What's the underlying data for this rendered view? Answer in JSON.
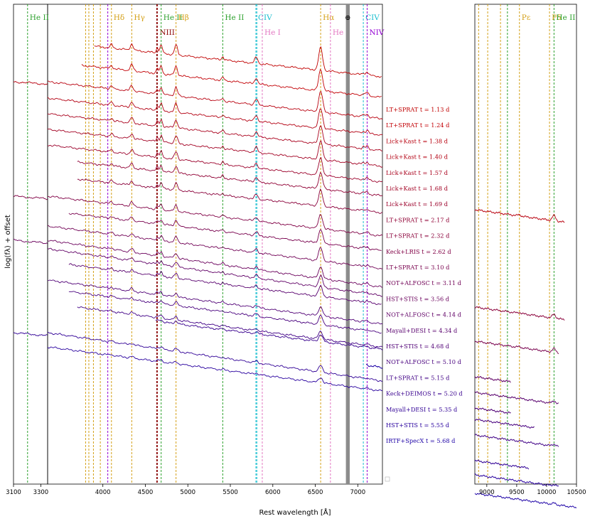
{
  "chart_data": {
    "type": "line",
    "xlabel": "Rest wavelength [Å]",
    "ylabel": "log(fλ) + offset",
    "xlim": [
      3100,
      10500
    ],
    "panels": [
      {
        "name": "left",
        "xlim": [
          3100,
          3350
        ]
      },
      {
        "name": "middle",
        "xlim": [
          3350,
          7290
        ]
      },
      {
        "name": "right",
        "xlim": [
          8800,
          10500
        ]
      }
    ],
    "xticks": {
      "left": [
        3100,
        3300
      ],
      "middle": [
        4000,
        4500,
        5000,
        5500,
        6000,
        6500,
        7000
      ],
      "right": [
        9000,
        9500,
        10000,
        10500
      ]
    },
    "telluric_band": {
      "x0": 6860,
      "x1": 6905,
      "label": "⊕"
    },
    "line_markers": [
      {
        "x": 3203,
        "color": "#2ca02c",
        "label": "He II",
        "row": 1
      },
      {
        "x": 3797,
        "color": "#d4a017",
        "label": "",
        "row": 1
      },
      {
        "x": 3835,
        "color": "#d4a017",
        "label": "",
        "row": 1
      },
      {
        "x": 3889,
        "color": "#d4a017",
        "label": "",
        "row": 1
      },
      {
        "x": 3970,
        "color": "#d4a017",
        "label": "",
        "row": 1
      },
      {
        "x": 4058,
        "color": "#9400d3",
        "label": "",
        "row": 1
      },
      {
        "x": 4101,
        "color": "#d4a017",
        "label": "Hδ",
        "row": 1
      },
      {
        "x": 4340,
        "color": "#d4a017",
        "label": "Hγ",
        "row": 1
      },
      {
        "x": 4634,
        "color": "#8b0000",
        "label": "",
        "row": 1
      },
      {
        "x": 4641,
        "color": "#8b0000",
        "label": "NIII",
        "row": 2
      },
      {
        "x": 4686,
        "color": "#2ca02c",
        "label": "He II",
        "row": 1
      },
      {
        "x": 4861,
        "color": "#d4a017",
        "label": "Hβ",
        "row": 1
      },
      {
        "x": 5411,
        "color": "#2ca02c",
        "label": "He II",
        "row": 1
      },
      {
        "x": 5801,
        "color": "#17becf",
        "label": "CIV",
        "row": 1
      },
      {
        "x": 5812,
        "color": "#17becf",
        "label": "",
        "row": 1
      },
      {
        "x": 5876,
        "color": "#e377c2",
        "label": "He I",
        "row": 2
      },
      {
        "x": 6563,
        "color": "#d4a017",
        "label": "Hα",
        "row": 1
      },
      {
        "x": 6678,
        "color": "#e377c2",
        "label": "He I",
        "row": 2
      },
      {
        "x": 7065,
        "color": "#17becf",
        "label": "CIV",
        "row": 1
      },
      {
        "x": 7110,
        "color": "#9400d3",
        "label": "NIV",
        "row": 2
      },
      {
        "x": 8863,
        "color": "#d4a017",
        "label": "",
        "row": 1
      },
      {
        "x": 9015,
        "color": "#d4a017",
        "label": "",
        "row": 1
      },
      {
        "x": 9229,
        "color": "#d4a017",
        "label": "",
        "row": 1
      },
      {
        "x": 9345,
        "color": "#2ca02c",
        "label": "",
        "row": 1
      },
      {
        "x": 9546,
        "color": "#d4a017",
        "label": "Pε",
        "row": 1
      },
      {
        "x": 10049,
        "color": "#d4a017",
        "label": "Pδ",
        "row": 1
      },
      {
        "x": 10124,
        "color": "#2ca02c",
        "label": "He II",
        "row": 1
      }
    ],
    "series": [
      {
        "name": "LT+SPRAT t = 1.13 d",
        "color": "#c00000",
        "ranges": [
          [
            3900,
            7290
          ]
        ],
        "y0": 65,
        "slope": 50
      },
      {
        "name": "LT+SPRAT t = 1.24 d",
        "color": "#c20005",
        "ranges": [
          [
            3750,
            7290
          ]
        ],
        "y0": 92,
        "slope": 50
      },
      {
        "name": "Lick+Kast t = 1.38 d",
        "color": "#b8000e",
        "ranges": [
          [
            3100,
            3350
          ],
          [
            3350,
            7290
          ],
          [
            8800,
            10300
          ]
        ],
        "y0": 115,
        "slope": 52
      },
      {
        "name": "Lick+Kast t = 1.40 d",
        "color": "#b30012",
        "ranges": [
          [
            3350,
            7290
          ]
        ],
        "y0": 138,
        "slope": 52
      },
      {
        "name": "Lick+Kast t = 1.57 d",
        "color": "#a9001c",
        "ranges": [
          [
            3350,
            7290
          ]
        ],
        "y0": 160,
        "slope": 52
      },
      {
        "name": "Lick+Kast t = 1.68 d",
        "color": "#a20022",
        "ranges": [
          [
            3350,
            7290
          ]
        ],
        "y0": 182,
        "slope": 52
      },
      {
        "name": "Lick+Kast t = 1.69 d",
        "color": "#9b002a",
        "ranges": [
          [
            3350,
            7290
          ]
        ],
        "y0": 204,
        "slope": 52
      },
      {
        "name": "LT+SPRAT t = 2.17 d",
        "color": "#900034",
        "ranges": [
          [
            3700,
            7290
          ]
        ],
        "y0": 228,
        "slope": 52
      },
      {
        "name": "LT+SPRAT t = 2.32 d",
        "color": "#8a003a",
        "ranges": [
          [
            3700,
            7290
          ],
          [
            8800,
            10300
          ]
        ],
        "y0": 252,
        "slope": 52
      },
      {
        "name": "Keck+LRIS t = 2.62 d",
        "color": "#800045",
        "ranges": [
          [
            3100,
            3350
          ],
          [
            3350,
            7290
          ]
        ],
        "y0": 276,
        "slope": 56
      },
      {
        "name": "LT+SPRAT t = 3.10 d",
        "color": "#78004d",
        "ranges": [
          [
            3600,
            7290
          ],
          [
            8800,
            10200
          ]
        ],
        "y0": 300,
        "slope": 56
      },
      {
        "name": "NOT+ALFOSC t = 3.11 d",
        "color": "#700055",
        "ranges": [
          [
            3350,
            7290
          ]
        ],
        "y0": 318,
        "slope": 60
      },
      {
        "name": "HST+STIS t = 3.56 d",
        "color": "#6a005c",
        "ranges": [
          [
            3100,
            3350
          ],
          [
            3350,
            7290
          ]
        ],
        "y0": 338,
        "slope": 66
      },
      {
        "name": "NOT+ALFOSC t = 4.14 d",
        "color": "#600066",
        "ranges": [
          [
            3350,
            7290
          ],
          [
            8800,
            9400
          ]
        ],
        "y0": 350,
        "slope": 66
      },
      {
        "name": "Mayall+DESI t = 4.34 d",
        "color": "#58006e",
        "ranges": [
          [
            3600,
            7290
          ],
          [
            8800,
            10200
          ]
        ],
        "y0": 372,
        "slope": 60
      },
      {
        "name": "HST+STIS t = 4.68 d",
        "color": "#500076",
        "ranges": [
          [
            3350,
            7290
          ],
          [
            8800,
            9400
          ]
        ],
        "y0": 394,
        "slope": 62
      },
      {
        "name": "NOT+ALFOSC t = 5.10 d",
        "color": "#48007e",
        "ranges": [
          [
            3600,
            7290
          ],
          [
            8800,
            9800
          ]
        ],
        "y0": 410,
        "slope": 62
      },
      {
        "name": "LT+SPRAT t = 5.15 d",
        "color": "#400086",
        "ranges": [
          [
            3700,
            7290
          ],
          [
            8800,
            10200
          ]
        ],
        "y0": 432,
        "slope": 62
      },
      {
        "name": "Keck+DEIMOS t = 5.20 d",
        "color": "#38008e",
        "ranges": [
          [
            4620,
            7290
          ]
        ],
        "y0": 452,
        "slope": 58
      },
      {
        "name": "Mayall+DESI t = 5.35 d",
        "color": "#300096",
        "ranges": [
          [
            3100,
            3350
          ],
          [
            3350,
            7290
          ],
          [
            8800,
            9700
          ]
        ],
        "y0": 468,
        "slope": 68
      },
      {
        "name": "HST+STIS t = 5.55 d",
        "color": "#28009e",
        "ranges": [
          [
            3350,
            7290
          ],
          [
            8800,
            10200
          ]
        ],
        "y0": 488,
        "slope": 62
      },
      {
        "name": "IRTF+SpecX t = 5.68 d",
        "color": "#1c00a6",
        "ranges": [
          [
            7100,
            7290
          ],
          [
            8800,
            10500
          ]
        ],
        "y0": 514,
        "slope": 62
      }
    ]
  }
}
